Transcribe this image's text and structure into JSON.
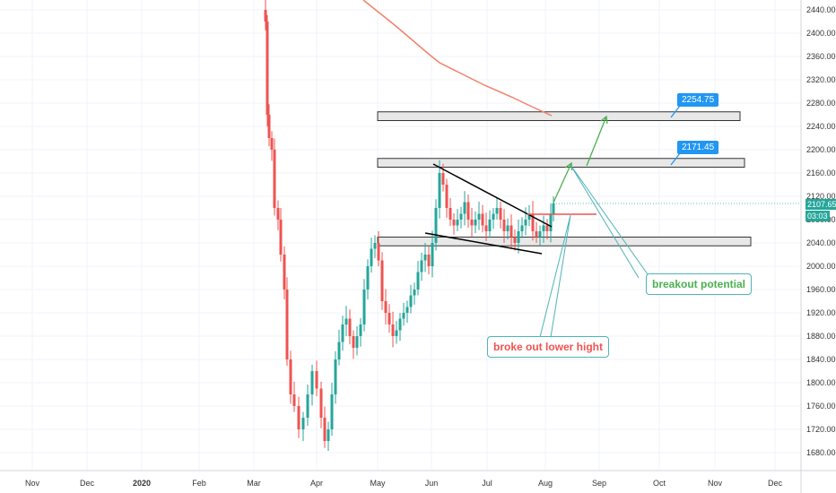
{
  "chart_data": {
    "type": "candlestick",
    "title": "",
    "xlabel": "",
    "ylabel": "",
    "ylim": [
      1660,
      2450
    ],
    "grid": true,
    "y_ticks": [
      "2440.00",
      "2400.00",
      "2360.00",
      "2320.00",
      "2280.00",
      "2240.00",
      "2200.00",
      "2160.00",
      "2120.00",
      "2080.00",
      "2040.00",
      "2000.00",
      "1960.00",
      "1920.00",
      "1880.00",
      "1840.00",
      "1800.00",
      "1760.00",
      "1720.00",
      "1680.00"
    ],
    "x_ticks": [
      "Nov",
      "Dec",
      "2020",
      "Feb",
      "Mar",
      "Apr",
      "May",
      "Jun",
      "Jul",
      "Aug",
      "Sep",
      "Oct",
      "Nov",
      "Dec"
    ],
    "last_price": "2107.65",
    "countdown": "03:03",
    "colors": {
      "up": "#26a69a",
      "down": "#ef5350",
      "ma": "#f3806b",
      "zone_border": "#333333",
      "zone_fill": "#e8e8e8",
      "label_blue": "#2196f3",
      "arrow_green": "#4caf50",
      "arrow_teal": "#4fb3b8"
    },
    "zones": [
      {
        "low": 2250,
        "high": 2265
      },
      {
        "low": 2170,
        "high": 2185
      },
      {
        "low": 2035,
        "high": 2050
      }
    ],
    "zone_labels": [
      "2254.75",
      "2171.45"
    ],
    "annotations": [
      "breakout potential",
      "broke out lower hight"
    ]
  }
}
